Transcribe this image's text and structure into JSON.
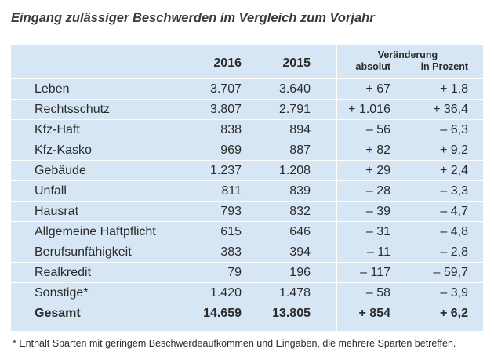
{
  "title": "Eingang zulässiger Beschwerden im Vergleich zum Vorjahr",
  "header": {
    "year_current": "2016",
    "year_previous": "2015",
    "change_label": "Veränderung",
    "absolute_label": "absolut",
    "percent_label": "in Prozent"
  },
  "rows": [
    {
      "label": "Leben",
      "v2016": "3.707",
      "v2015": "3.640",
      "abs": "+ 67",
      "pct": "+ 1,8"
    },
    {
      "label": "Rechtsschutz",
      "v2016": "3.807",
      "v2015": "2.791",
      "abs": "+ 1.016",
      "pct": "+ 36,4"
    },
    {
      "label": "Kfz-Haft",
      "v2016": "838",
      "v2015": "894",
      "abs": "– 56",
      "pct": "– 6,3"
    },
    {
      "label": "Kfz-Kasko",
      "v2016": "969",
      "v2015": "887",
      "abs": "+ 82",
      "pct": "+ 9,2"
    },
    {
      "label": "Gebäude",
      "v2016": "1.237",
      "v2015": "1.208",
      "abs": "+ 29",
      "pct": "+ 2,4"
    },
    {
      "label": "Unfall",
      "v2016": "811",
      "v2015": "839",
      "abs": "– 28",
      "pct": "– 3,3"
    },
    {
      "label": "Hausrat",
      "v2016": "793",
      "v2015": "832",
      "abs": "– 39",
      "pct": "– 4,7"
    },
    {
      "label": "Allgemeine Haftpflicht",
      "v2016": "615",
      "v2015": "646",
      "abs": "– 31",
      "pct": "– 4,8"
    },
    {
      "label": "Berufsunfähigkeit",
      "v2016": "383",
      "v2015": "394",
      "abs": "– 11",
      "pct": "– 2,8"
    },
    {
      "label": "Realkredit",
      "v2016": "79",
      "v2015": "196",
      "abs": "– 117",
      "pct": "– 59,7"
    },
    {
      "label": "Sonstige*",
      "v2016": "1.420",
      "v2015": "1.478",
      "abs": "– 58",
      "pct": "– 3,9"
    },
    {
      "label": "Gesamt",
      "v2016": "14.659",
      "v2015": "13.805",
      "abs": "+ 854",
      "pct": "+ 6,2"
    }
  ],
  "footnote": "* Enthält Sparten mit geringem Beschwerdeaufkommen und Eingaben, die mehrere Sparten betreffen.",
  "colors": {
    "table_background": "#d6e6f4",
    "rule": "#ffffff",
    "text": "#2b2b2b"
  }
}
